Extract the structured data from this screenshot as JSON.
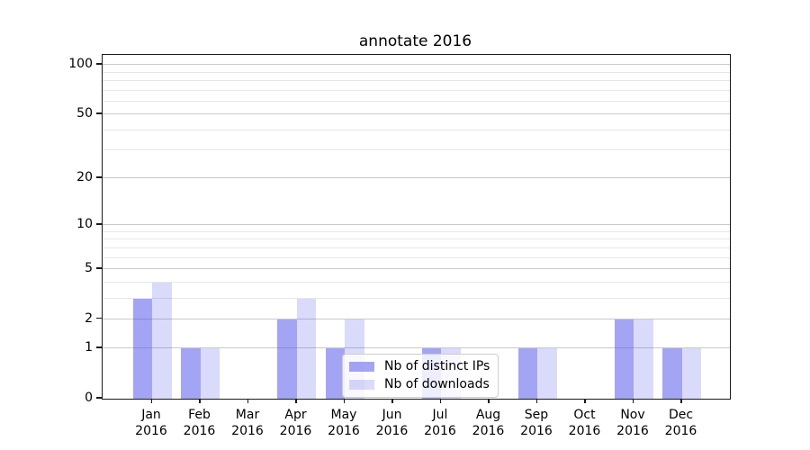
{
  "title": "annotate 2016",
  "chart_data": {
    "type": "bar",
    "title": "annotate 2016",
    "categories": [
      "Jan",
      "Feb",
      "Mar",
      "Apr",
      "May",
      "Jun",
      "Jul",
      "Aug",
      "Sep",
      "Oct",
      "Nov",
      "Dec"
    ],
    "category_sublabel": "2016",
    "series": [
      {
        "name": "Nb of distinct IPs",
        "color": "rgba(80,80,235,0.52)",
        "values": [
          3,
          1,
          0,
          2,
          1,
          0,
          1,
          0,
          1,
          0,
          2,
          1
        ]
      },
      {
        "name": "Nb of downloads",
        "color": "rgba(80,80,235,0.21)",
        "values": [
          4,
          1,
          0,
          3,
          2,
          0,
          1,
          0,
          1,
          0,
          2,
          1
        ]
      }
    ],
    "yscale": "log1p",
    "yticks": [
      0,
      1,
      2,
      5,
      10,
      20,
      50,
      100
    ],
    "minor_gridlines": [
      3,
      4,
      6,
      7,
      8,
      9,
      30,
      40,
      60,
      70,
      80,
      90
    ],
    "ylim": [
      0,
      115
    ],
    "xlabel": "",
    "ylabel": "",
    "grid": "both",
    "legend_position": "inside-lower-center"
  },
  "colors": {
    "background": "#ffffff",
    "spine": "#1a1a1a",
    "grid_major": "#c9c9c9",
    "grid_minor": "#e7e7e7"
  }
}
